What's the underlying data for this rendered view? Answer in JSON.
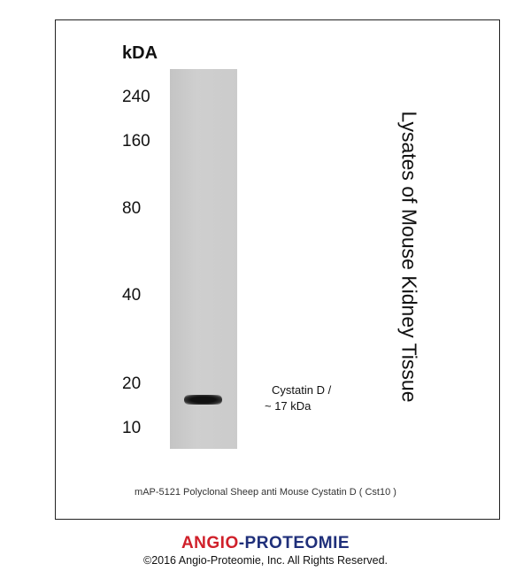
{
  "unit_label": "kDA",
  "markers": [
    "240",
    "160",
    "80",
    "40",
    "20",
    "10"
  ],
  "band_label": {
    "line1": "Cystatin D /",
    "line2": "~ 17 kDa"
  },
  "sample_label": "Lysates of Mouse Kidney Tissue",
  "caption": "mAP-5121 Polyclonal Sheep anti Mouse Cystatin D ( Cst10 )",
  "logo": {
    "part1": "ANGIO",
    "dash": "-",
    "part2": "PROTEOMIE",
    "color1": "#d0202a",
    "color2": "#1f2f7a"
  },
  "copyright": "©2016 Angio-Proteomie, Inc.  All Rights Reserved."
}
